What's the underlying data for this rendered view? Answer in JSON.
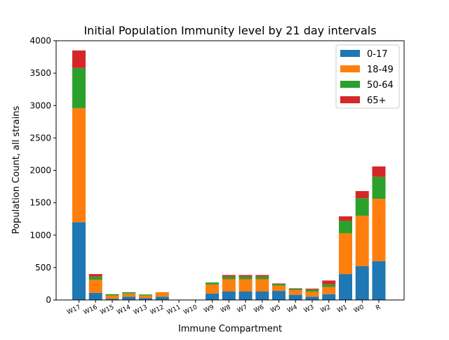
{
  "chart_data": {
    "type": "bar",
    "stacked": true,
    "title": "Initial Population Immunity level by 21 day intervals",
    "xlabel": "Immune Compartment",
    "ylabel": "Population Count, all strains",
    "ylim": [
      0,
      4000
    ],
    "yticks": [
      "0",
      "500",
      "1000",
      "1500",
      "2000",
      "2500",
      "3000",
      "3500",
      "4000"
    ],
    "legend_position": "top-right",
    "categories": [
      "W17",
      "W16",
      "W15",
      "W14",
      "W13",
      "W12",
      "W11",
      "W10",
      "W9",
      "W8",
      "W7",
      "W6",
      "W5",
      "W4",
      "W3",
      "W2",
      "W1",
      "W0",
      "R"
    ],
    "series": [
      {
        "name": "0-17",
        "color": "#1f77b4",
        "values": [
          1200,
          110,
          20,
          50,
          30,
          50,
          0,
          0,
          100,
          130,
          130,
          130,
          140,
          80,
          50,
          90,
          400,
          520,
          600
        ]
      },
      {
        "name": "18-49",
        "color": "#ff7f0e",
        "values": [
          1760,
          200,
          50,
          50,
          40,
          70,
          0,
          0,
          140,
          190,
          190,
          190,
          80,
          70,
          80,
          110,
          630,
          780,
          960
        ]
      },
      {
        "name": "50-64",
        "color": "#2ca02c",
        "values": [
          620,
          50,
          20,
          20,
          15,
          0,
          0,
          0,
          30,
          40,
          40,
          40,
          25,
          20,
          30,
          40,
          190,
          270,
          340
        ]
      },
      {
        "name": "65+",
        "color": "#d62728",
        "values": [
          270,
          40,
          0,
          0,
          0,
          0,
          0,
          0,
          0,
          25,
          25,
          25,
          10,
          10,
          15,
          60,
          70,
          110,
          160
        ]
      }
    ]
  }
}
